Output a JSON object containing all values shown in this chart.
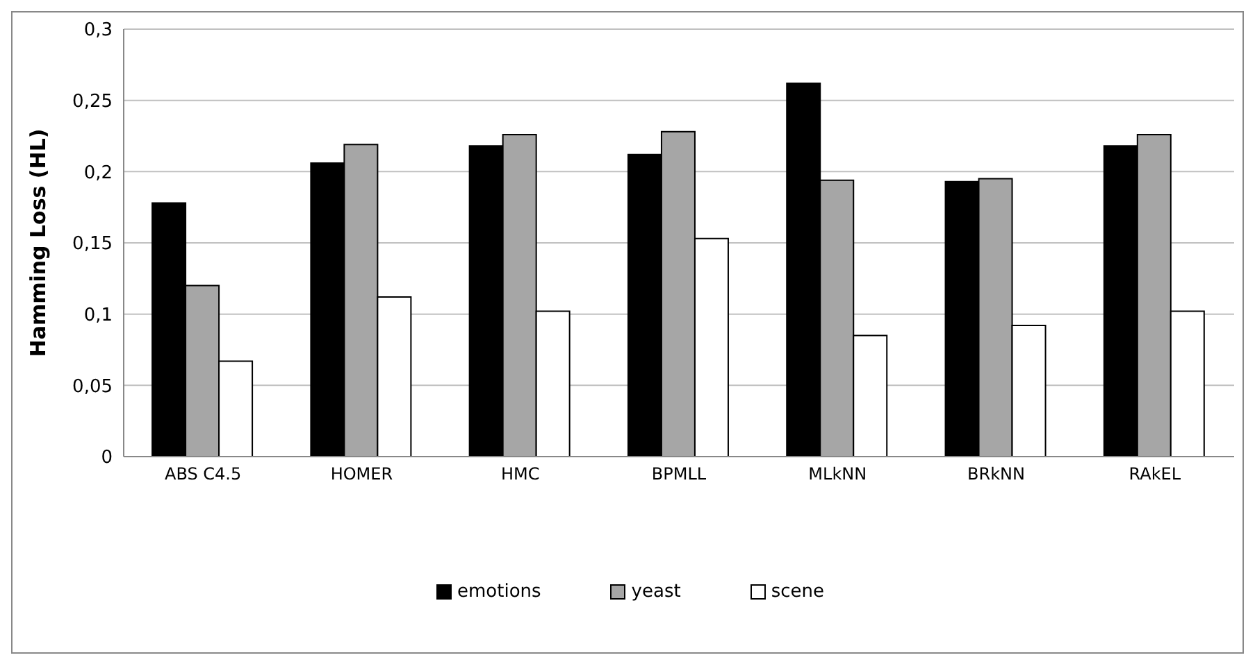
{
  "chart_data": {
    "type": "bar",
    "ylabel": "Hamming Loss  (HL)",
    "categories": [
      "ABS C4.5",
      "HOMER",
      "HMC",
      "BPMLL",
      "MLkNN",
      "BRkNN",
      "RAkEL"
    ],
    "series": [
      {
        "name": "emotions",
        "color": "#000000",
        "values": [
          0.178,
          0.206,
          0.218,
          0.212,
          0.262,
          0.193,
          0.218
        ]
      },
      {
        "name": "yeast",
        "color": "#a6a6a6",
        "values": [
          0.12,
          0.219,
          0.226,
          0.228,
          0.194,
          0.195,
          0.226
        ]
      },
      {
        "name": "scene",
        "color": "#ffffff",
        "values": [
          0.067,
          0.112,
          0.102,
          0.153,
          0.085,
          0.092,
          0.102
        ]
      }
    ],
    "ylim": [
      0,
      0.3
    ],
    "yticks": [
      {
        "value": 0,
        "label": "0"
      },
      {
        "value": 0.05,
        "label": "0,05"
      },
      {
        "value": 0.1,
        "label": "0,1"
      },
      {
        "value": 0.15,
        "label": "0,15"
      },
      {
        "value": 0.2,
        "label": "0,2"
      },
      {
        "value": 0.25,
        "label": "0,25"
      },
      {
        "value": 0.3,
        "label": "0,3"
      }
    ],
    "grid": "y",
    "legend": "bottom"
  }
}
